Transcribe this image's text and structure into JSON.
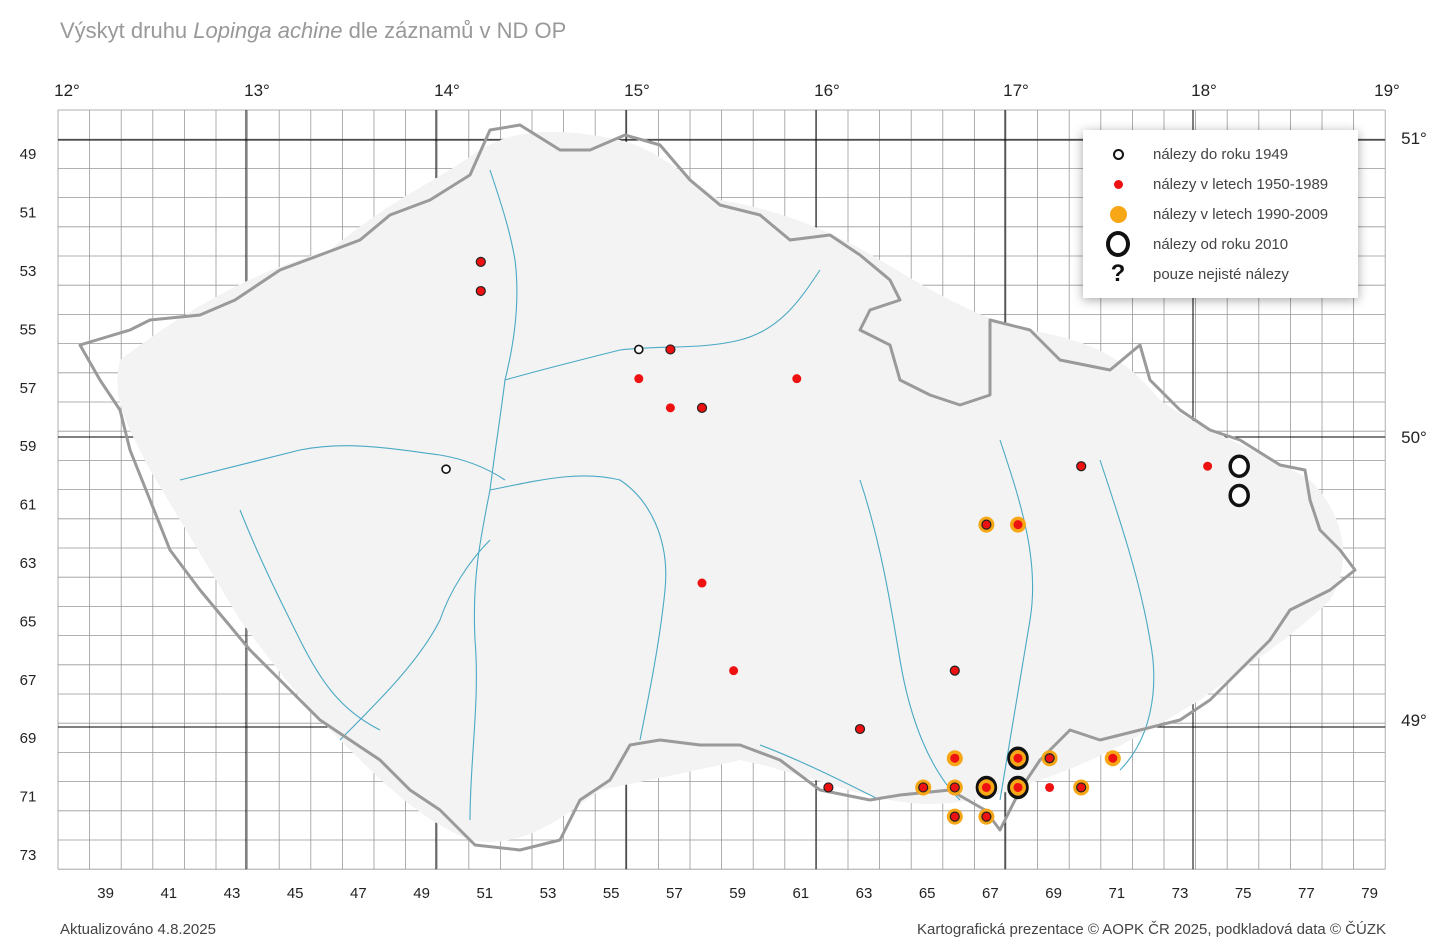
{
  "title": {
    "prefix": "Výskyt druhu",
    "species": "Lopinga achine",
    "suffix": "dle záznamů v ND OP"
  },
  "longitude_labels": [
    "12°",
    "13°",
    "14°",
    "15°",
    "16°",
    "17°",
    "18°",
    "19°"
  ],
  "latitude_labels": [
    "51°",
    "50°",
    "49°"
  ],
  "grid_row_labels": [
    "49",
    "51",
    "53",
    "55",
    "57",
    "59",
    "61",
    "63",
    "65",
    "67",
    "69",
    "71",
    "73"
  ],
  "grid_col_labels": [
    "39",
    "41",
    "43",
    "45",
    "47",
    "49",
    "51",
    "53",
    "55",
    "57",
    "59",
    "61",
    "63",
    "65",
    "67",
    "69",
    "71",
    "73",
    "75",
    "77",
    "79"
  ],
  "legend": {
    "items": [
      {
        "key": "pre1949",
        "label": "nálezy do roku 1949"
      },
      {
        "key": "y1950_1989",
        "label": "nálezy v letech 1950-1989"
      },
      {
        "key": "y1990_2009",
        "label": "nálezy v letech 1990-2009"
      },
      {
        "key": "since2010",
        "label": "nálezy od roku 2010"
      },
      {
        "key": "unsure",
        "label": "pouze nejisté nálezy"
      }
    ]
  },
  "colors": {
    "pre1949": "#111111",
    "y1950_1989": "#ee1111",
    "y1990_2009": "#f7a616",
    "since2010": "#111111",
    "grid": "#999999",
    "major_grid": "#000000",
    "border": "#9a9a9a",
    "rivers": "#4aa9c4"
  },
  "records": [
    {
      "col": 49.9,
      "row": 60.3,
      "classes": [
        "pre1949"
      ]
    },
    {
      "col": 56.0,
      "row": 56.2,
      "classes": [
        "pre1949"
      ]
    },
    {
      "col": 51.0,
      "row": 53.2,
      "classes": [
        "y1950_1989"
      ],
      "ring": true
    },
    {
      "col": 51.0,
      "row": 54.2,
      "classes": [
        "y1950_1989"
      ],
      "ring": true
    },
    {
      "col": 57.0,
      "row": 56.2,
      "classes": [
        "y1950_1989"
      ],
      "ring": true
    },
    {
      "col": 56.0,
      "row": 57.2,
      "classes": [
        "y1950_1989"
      ]
    },
    {
      "col": 57.0,
      "row": 58.2,
      "classes": [
        "y1950_1989"
      ]
    },
    {
      "col": 58.0,
      "row": 58.2,
      "classes": [
        "y1950_1989"
      ],
      "ring": true
    },
    {
      "col": 61.0,
      "row": 57.2,
      "classes": [
        "y1950_1989"
      ]
    },
    {
      "col": 58.0,
      "row": 64.2,
      "classes": [
        "y1950_1989"
      ]
    },
    {
      "col": 59.0,
      "row": 67.2,
      "classes": [
        "y1950_1989"
      ]
    },
    {
      "col": 66.0,
      "row": 67.2,
      "classes": [
        "y1950_1989"
      ],
      "ring": true
    },
    {
      "col": 63.0,
      "row": 69.2,
      "classes": [
        "y1950_1989"
      ],
      "ring": true
    },
    {
      "col": 62.0,
      "row": 71.2,
      "classes": [
        "y1950_1989"
      ],
      "ring": true
    },
    {
      "col": 70.0,
      "row": 60.2,
      "classes": [
        "y1950_1989"
      ],
      "ring": true
    },
    {
      "col": 74.0,
      "row": 60.2,
      "classes": [
        "y1950_1989"
      ]
    },
    {
      "col": 69.0,
      "row": 71.2,
      "classes": [
        "y1950_1989"
      ]
    },
    {
      "col": 67.0,
      "row": 62.2,
      "classes": [
        "y1950_1989",
        "y1990_2009"
      ],
      "ring": true
    },
    {
      "col": 68.0,
      "row": 62.2,
      "classes": [
        "y1950_1989",
        "y1990_2009"
      ]
    },
    {
      "col": 66.0,
      "row": 70.2,
      "classes": [
        "y1950_1989",
        "y1990_2009"
      ]
    },
    {
      "col": 69.0,
      "row": 70.2,
      "classes": [
        "y1950_1989",
        "y1990_2009"
      ],
      "ring": true
    },
    {
      "col": 71.0,
      "row": 70.2,
      "classes": [
        "y1950_1989",
        "y1990_2009"
      ]
    },
    {
      "col": 65.0,
      "row": 71.2,
      "classes": [
        "y1950_1989",
        "y1990_2009"
      ],
      "ring": true
    },
    {
      "col": 66.0,
      "row": 71.2,
      "classes": [
        "y1950_1989",
        "y1990_2009"
      ],
      "ring": true
    },
    {
      "col": 70.0,
      "row": 71.2,
      "classes": [
        "y1950_1989",
        "y1990_2009"
      ],
      "ring": true
    },
    {
      "col": 66.0,
      "row": 72.2,
      "classes": [
        "y1950_1989",
        "y1990_2009"
      ],
      "ring": true
    },
    {
      "col": 67.0,
      "row": 72.2,
      "classes": [
        "y1950_1989",
        "y1990_2009"
      ],
      "ring": true
    },
    {
      "col": 68.0,
      "row": 70.2,
      "classes": [
        "y1950_1989",
        "y1990_2009",
        "since2010"
      ]
    },
    {
      "col": 67.0,
      "row": 71.2,
      "classes": [
        "y1950_1989",
        "y1990_2009",
        "since2010"
      ]
    },
    {
      "col": 68.0,
      "row": 71.2,
      "classes": [
        "y1950_1989",
        "y1990_2009",
        "since2010"
      ]
    },
    {
      "col": 75.0,
      "row": 60.2,
      "classes": [
        "since2010"
      ]
    },
    {
      "col": 75.0,
      "row": 61.2,
      "classes": [
        "since2010"
      ]
    }
  ],
  "footer": {
    "updated": "Aktualizováno 4.8.2025",
    "credits": "Kartografická prezentace © AOPK ČR 2025, podkladová data © ČÚZK"
  }
}
